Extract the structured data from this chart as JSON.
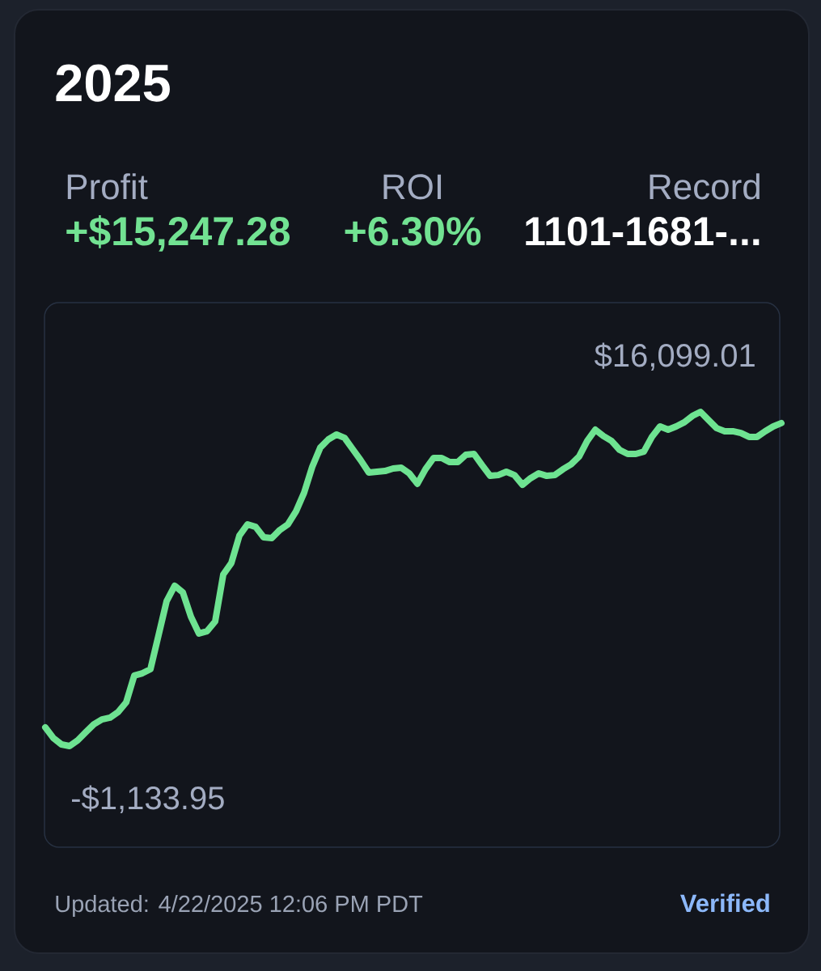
{
  "chart_data": {
    "type": "line",
    "title": "2025",
    "categories": [
      null,
      null,
      null,
      null,
      null,
      null,
      null,
      null,
      null,
      null,
      null,
      null,
      null,
      null,
      null,
      null,
      null,
      null,
      null,
      null,
      null,
      null,
      null,
      null,
      null,
      null,
      null,
      null,
      null,
      null,
      null,
      null,
      null,
      null,
      null,
      null,
      null,
      null,
      null,
      null,
      null,
      null,
      null,
      null,
      null,
      null,
      null,
      null,
      null,
      null,
      null,
      null,
      null,
      null,
      null,
      null,
      null,
      null,
      null,
      null,
      null,
      null,
      null,
      null,
      null,
      null,
      null,
      null,
      null,
      null,
      null,
      null,
      null,
      null,
      null,
      null,
      null,
      null,
      null,
      null,
      null,
      null,
      null,
      null,
      null,
      null,
      null,
      null,
      null,
      null,
      null,
      null
    ],
    "series": [
      {
        "color": "#6ee391",
        "values": [
          -170,
          -720,
          -1050,
          -1133.95,
          -840,
          -420,
          -10,
          240,
          330,
          620,
          1120,
          2500,
          2620,
          2830,
          4580,
          6340,
          7130,
          6790,
          5540,
          4670,
          4790,
          5290,
          7710,
          8300,
          9720,
          10300,
          10170,
          9630,
          9590,
          10010,
          10300,
          10970,
          11930,
          13260,
          14260,
          14680,
          14930,
          14760,
          14180,
          13600,
          12970,
          13010,
          13050,
          13180,
          13220,
          12930,
          12390,
          13140,
          13720,
          13720,
          13510,
          13510,
          13890,
          13930,
          13350,
          12800,
          12840,
          13010,
          12840,
          12340,
          12680,
          12930,
          12800,
          12840,
          13140,
          13390,
          13800,
          14600,
          15180,
          14850,
          14600,
          14140,
          13930,
          13930,
          14050,
          14810,
          15350,
          15180,
          15350,
          15560,
          15890,
          16099.01,
          15680,
          15260,
          15100,
          15100,
          15010,
          14810,
          14810,
          15100,
          15350,
          15520
        ],
        "value_labels": [
          null,
          null,
          null,
          "-$1,133.95",
          null,
          null,
          null,
          null,
          null,
          null,
          null,
          null,
          null,
          null,
          null,
          null,
          null,
          null,
          null,
          null,
          null,
          null,
          null,
          null,
          null,
          null,
          null,
          null,
          null,
          null,
          null,
          null,
          null,
          null,
          null,
          null,
          null,
          null,
          null,
          null,
          null,
          null,
          null,
          null,
          null,
          null,
          null,
          null,
          null,
          null,
          null,
          null,
          null,
          null,
          null,
          null,
          null,
          null,
          null,
          null,
          null,
          null,
          null,
          null,
          null,
          null,
          null,
          null,
          null,
          null,
          null,
          null,
          null,
          null,
          null,
          null,
          null,
          null,
          null,
          null,
          null,
          "$16,099.01",
          null,
          null,
          null,
          null,
          null,
          null,
          null,
          null,
          null,
          null
        ]
      }
    ],
    "annotations": [
      "Profit",
      "+$15,247.28",
      "ROI",
      "+6.30%",
      "Record",
      "1101-1681-...",
      "Updated: 4/22/2025 12:06 PM PDT",
      "Verified"
    ]
  }
}
